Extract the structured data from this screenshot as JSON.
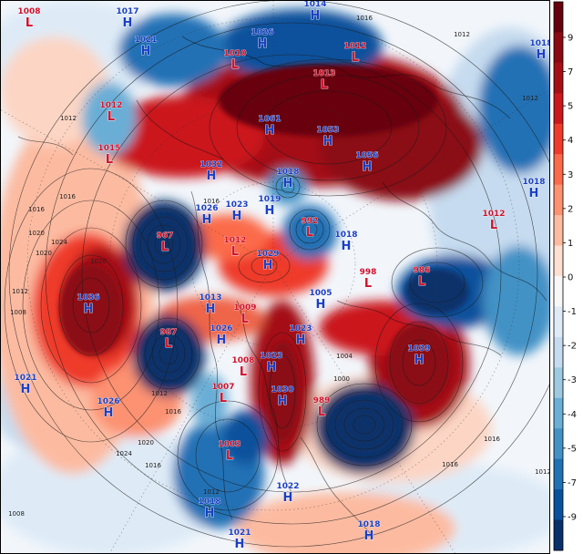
{
  "map": {
    "pressure_centers": [
      {
        "type": "L",
        "value": "1008"
      },
      {
        "type": "H",
        "value": "1017"
      },
      {
        "type": "H",
        "value": "1021"
      },
      {
        "type": "H",
        "value": "1014"
      },
      {
        "type": "H",
        "value": "1026"
      },
      {
        "type": "L",
        "value": "1010"
      },
      {
        "type": "L",
        "value": "1012"
      },
      {
        "type": "L",
        "value": "1013"
      },
      {
        "type": "H",
        "value": "1018"
      },
      {
        "type": "L",
        "value": "1012"
      },
      {
        "type": "L",
        "value": "1015"
      },
      {
        "type": "H",
        "value": "1061"
      },
      {
        "type": "H",
        "value": "1053"
      },
      {
        "type": "H",
        "value": "1056"
      },
      {
        "type": "H",
        "value": "1032"
      },
      {
        "type": "L",
        "value": "967"
      },
      {
        "type": "H",
        "value": "1026"
      },
      {
        "type": "H",
        "value": "1023"
      },
      {
        "type": "H",
        "value": "1019"
      },
      {
        "type": "L",
        "value": "992"
      },
      {
        "type": "H",
        "value": "1018"
      },
      {
        "type": "H",
        "value": "1018"
      },
      {
        "type": "H",
        "value": "1018"
      },
      {
        "type": "H",
        "value": "1036"
      },
      {
        "type": "H",
        "value": "1029"
      },
      {
        "type": "L",
        "value": "1012"
      },
      {
        "type": "L",
        "value": "998"
      },
      {
        "type": "L",
        "value": "986"
      },
      {
        "type": "H",
        "value": "1013"
      },
      {
        "type": "L",
        "value": "1009"
      },
      {
        "type": "H",
        "value": "1005"
      },
      {
        "type": "L",
        "value": "987"
      },
      {
        "type": "H",
        "value": "1026"
      },
      {
        "type": "H",
        "value": "1023"
      },
      {
        "type": "L",
        "value": "1008"
      },
      {
        "type": "H",
        "value": "1023"
      },
      {
        "type": "H",
        "value": "1039"
      },
      {
        "type": "H",
        "value": "1021"
      },
      {
        "type": "L",
        "value": "1007"
      },
      {
        "type": "H",
        "value": "1030"
      },
      {
        "type": "L",
        "value": "989"
      },
      {
        "type": "H",
        "value": "1026"
      },
      {
        "type": "L",
        "value": "1003"
      },
      {
        "type": "H",
        "value": "1022"
      },
      {
        "type": "H",
        "value": "1018"
      },
      {
        "type": "H",
        "value": "1021"
      },
      {
        "type": "H",
        "value": "1018"
      },
      {
        "type": "L",
        "value": "1012"
      }
    ],
    "isobar_labels": [
      "1012",
      "1016",
      "1020",
      "1024",
      "1020",
      "1016",
      "1012",
      "1008",
      "1012",
      "1016",
      "1020",
      "1024",
      "1016",
      "1012",
      "1016",
      "1012",
      "1004",
      "1000",
      "1016",
      "1016",
      "1020",
      "1012",
      "1012",
      "1016",
      "1008"
    ],
    "colors": {
      "positive": "#a50f15",
      "negative": "#08306b",
      "neutral": "#f7f7f7",
      "high_label": "#1a3fc4",
      "low_label": "#d0112b"
    }
  },
  "colorbar": {
    "ticks": [
      "9",
      "7",
      "5",
      "4",
      "3",
      "2",
      "1",
      "0",
      "-1",
      "-2",
      "-3",
      "-4",
      "-5",
      "-7",
      "-9"
    ],
    "colors": [
      "#67000d",
      "#8b0a12",
      "#a50f15",
      "#cb181d",
      "#ef3b2c",
      "#fb6a4a",
      "#fc9272",
      "#fcbba1",
      "#fee0d2",
      "#f7f7f7",
      "#deebf7",
      "#c6dbef",
      "#9ecae1",
      "#6baed6",
      "#4292c6",
      "#2171b5",
      "#08519c",
      "#08306b"
    ]
  }
}
